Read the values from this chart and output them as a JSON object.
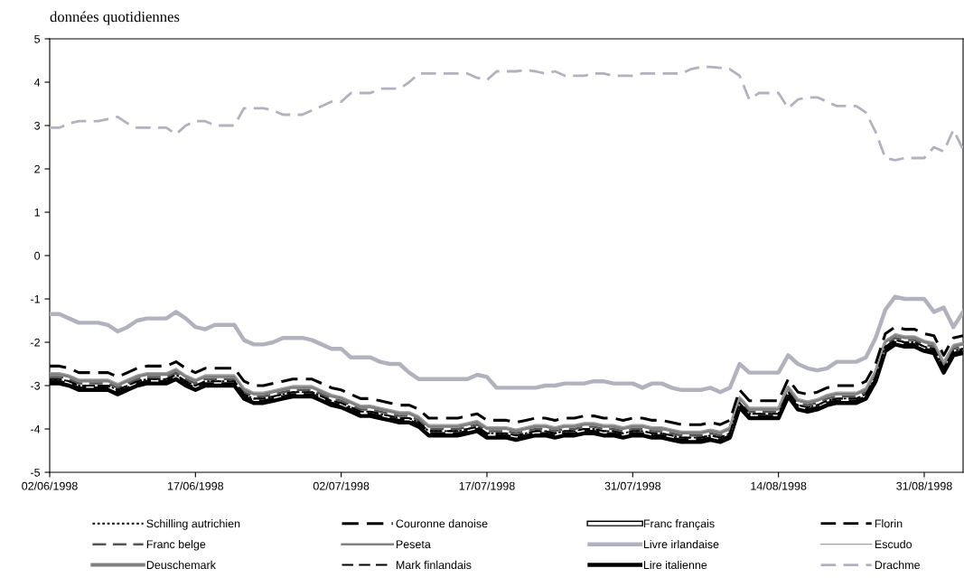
{
  "chart_data": {
    "type": "line",
    "title": "données quotidiennes",
    "categories": [
      "02/06/1998",
      null,
      null,
      null,
      null,
      null,
      null,
      null,
      null,
      null,
      null,
      null,
      null,
      null,
      null,
      "17/06/1998",
      null,
      null,
      null,
      null,
      null,
      null,
      null,
      null,
      null,
      null,
      null,
      null,
      null,
      null,
      "02/07/1998",
      null,
      null,
      null,
      null,
      null,
      null,
      null,
      null,
      null,
      null,
      null,
      null,
      null,
      null,
      "17/07/1998",
      null,
      null,
      null,
      null,
      null,
      null,
      null,
      null,
      null,
      null,
      null,
      null,
      null,
      null,
      "31/07/1998",
      null,
      null,
      null,
      null,
      null,
      null,
      null,
      null,
      null,
      null,
      null,
      null,
      null,
      null,
      "14/08/1998",
      null,
      null,
      null,
      null,
      null,
      null,
      null,
      null,
      null,
      null,
      null,
      null,
      null,
      null,
      "31/08/1998",
      null,
      null,
      null,
      null
    ],
    "ylim": [
      -5,
      5
    ],
    "yticks": [
      -5,
      -4,
      -3,
      -2,
      -1,
      0,
      1,
      2,
      3,
      4,
      5
    ],
    "grid": false,
    "legend": "bottom",
    "series": [
      {
        "name": "Schilling autrichien",
        "color": "#000000",
        "line_style": "dotted",
        "values": [
          -2.85,
          -2.85,
          -2.9,
          -3.0,
          -3.0,
          -3.0,
          -3.0,
          -3.1,
          -3.0,
          -2.9,
          -2.85,
          -2.85,
          -2.85,
          -2.75,
          -2.9,
          -3.0,
          -2.9,
          -2.9,
          -2.9,
          -2.9,
          -3.2,
          -3.3,
          -3.3,
          -3.25,
          -3.2,
          -3.15,
          -3.15,
          -3.15,
          -3.25,
          -3.35,
          -3.4,
          -3.5,
          -3.6,
          -3.6,
          -3.65,
          -3.7,
          -3.75,
          -3.75,
          -3.85,
          -4.05,
          -4.05,
          -4.05,
          -4.05,
          -4.0,
          -3.95,
          -4.1,
          -4.1,
          -4.1,
          -4.15,
          -4.1,
          -4.05,
          -4.05,
          -4.1,
          -4.05,
          -4.05,
          -4.0,
          -4.0,
          -4.05,
          -4.05,
          -4.1,
          -4.05,
          -4.05,
          -4.1,
          -4.1,
          -4.15,
          -4.2,
          -4.2,
          -4.2,
          -4.15,
          -4.2,
          -4.1,
          -3.4,
          -3.65,
          -3.65,
          -3.65,
          -3.65,
          -3.15,
          -3.45,
          -3.5,
          -3.45,
          -3.35,
          -3.3,
          -3.3,
          -3.3,
          -3.2,
          -2.8,
          -2.1,
          -1.95,
          -2.0,
          -2.0,
          -2.1,
          -2.15,
          -2.6,
          -2.2,
          -2.15
        ]
      },
      {
        "name": "Franc belge",
        "color": "#555555",
        "line_style": "dashed",
        "values": [
          -2.8,
          -2.8,
          -2.85,
          -2.95,
          -2.95,
          -2.95,
          -2.95,
          -3.05,
          -2.95,
          -2.85,
          -2.8,
          -2.8,
          -2.8,
          -2.7,
          -2.85,
          -2.95,
          -2.85,
          -2.85,
          -2.85,
          -2.85,
          -3.15,
          -3.25,
          -3.25,
          -3.2,
          -3.15,
          -3.1,
          -3.1,
          -3.1,
          -3.2,
          -3.3,
          -3.35,
          -3.45,
          -3.55,
          -3.55,
          -3.6,
          -3.65,
          -3.7,
          -3.7,
          -3.8,
          -4.0,
          -4.0,
          -4.0,
          -4.0,
          -3.95,
          -3.9,
          -4.05,
          -4.05,
          -4.05,
          -4.1,
          -4.05,
          -4.0,
          -4.0,
          -4.05,
          -4.0,
          -4.0,
          -3.95,
          -3.95,
          -4.0,
          -4.0,
          -4.05,
          -4.0,
          -4.0,
          -4.05,
          -4.05,
          -4.1,
          -4.15,
          -4.15,
          -4.15,
          -4.1,
          -4.15,
          -4.05,
          -3.35,
          -3.6,
          -3.6,
          -3.6,
          -3.6,
          -3.1,
          -3.4,
          -3.45,
          -3.4,
          -3.3,
          -3.25,
          -3.25,
          -3.25,
          -3.15,
          -2.75,
          -2.05,
          -1.9,
          -1.95,
          -1.95,
          -2.05,
          -2.1,
          -2.55,
          -2.15,
          -2.1
        ]
      },
      {
        "name": "Deuschemark",
        "color": "#808080",
        "line_style": "solid",
        "values": [
          -2.75,
          -2.75,
          -2.8,
          -2.9,
          -2.9,
          -2.9,
          -2.9,
          -3.0,
          -2.9,
          -2.8,
          -2.75,
          -2.75,
          -2.75,
          -2.65,
          -2.8,
          -2.9,
          -2.8,
          -2.8,
          -2.8,
          -2.8,
          -3.1,
          -3.2,
          -3.2,
          -3.15,
          -3.1,
          -3.05,
          -3.05,
          -3.05,
          -3.15,
          -3.25,
          -3.3,
          -3.4,
          -3.5,
          -3.5,
          -3.55,
          -3.6,
          -3.65,
          -3.65,
          -3.75,
          -3.95,
          -3.95,
          -3.95,
          -3.95,
          -3.9,
          -3.85,
          -4.0,
          -4.0,
          -4.0,
          -4.05,
          -4.0,
          -3.95,
          -3.95,
          -4.0,
          -3.95,
          -3.95,
          -3.9,
          -3.9,
          -3.95,
          -3.95,
          -4.0,
          -3.95,
          -3.95,
          -4.0,
          -4.0,
          -4.05,
          -4.1,
          -4.1,
          -4.1,
          -4.05,
          -4.1,
          -4.0,
          -3.3,
          -3.55,
          -3.55,
          -3.55,
          -3.55,
          -3.05,
          -3.35,
          -3.4,
          -3.35,
          -3.25,
          -3.2,
          -3.2,
          -3.2,
          -3.1,
          -2.7,
          -2.0,
          -1.85,
          -1.9,
          -1.9,
          -2.0,
          -2.05,
          -2.5,
          -2.1,
          -2.05
        ]
      },
      {
        "name": "Couronne danoise",
        "color": "#000000",
        "line_style": "dashed",
        "values": [
          -2.55,
          -2.55,
          -2.6,
          -2.7,
          -2.7,
          -2.7,
          -2.7,
          -2.8,
          -2.7,
          -2.6,
          -2.55,
          -2.55,
          -2.55,
          -2.45,
          -2.6,
          -2.7,
          -2.6,
          -2.6,
          -2.6,
          -2.6,
          -2.9,
          -3.0,
          -3.0,
          -2.95,
          -2.9,
          -2.85,
          -2.85,
          -2.85,
          -2.95,
          -3.05,
          -3.1,
          -3.2,
          -3.3,
          -3.3,
          -3.35,
          -3.4,
          -3.45,
          -3.45,
          -3.55,
          -3.75,
          -3.75,
          -3.75,
          -3.75,
          -3.7,
          -3.65,
          -3.8,
          -3.8,
          -3.8,
          -3.85,
          -3.8,
          -3.75,
          -3.75,
          -3.8,
          -3.75,
          -3.75,
          -3.7,
          -3.7,
          -3.75,
          -3.75,
          -3.8,
          -3.75,
          -3.75,
          -3.8,
          -3.8,
          -3.85,
          -3.9,
          -3.9,
          -3.9,
          -3.85,
          -3.9,
          -3.8,
          -3.1,
          -3.35,
          -3.35,
          -3.35,
          -3.35,
          -2.85,
          -3.15,
          -3.2,
          -3.15,
          -3.05,
          -3.0,
          -3.0,
          -3.0,
          -2.9,
          -2.5,
          -1.8,
          -1.65,
          -1.7,
          -1.7,
          -1.8,
          -1.85,
          -2.3,
          -1.9,
          -1.85
        ]
      },
      {
        "name": "Peseta",
        "color": "#808080",
        "line_style": "solid",
        "values": [
          -2.75,
          -2.75,
          -2.8,
          -2.9,
          -2.9,
          -2.9,
          -2.9,
          -3.0,
          -2.9,
          -2.8,
          -2.75,
          -2.75,
          -2.75,
          -2.65,
          -2.8,
          -2.9,
          -2.8,
          -2.8,
          -2.8,
          -2.8,
          -3.1,
          -3.2,
          -3.2,
          -3.15,
          -3.1,
          -3.05,
          -3.05,
          -3.05,
          -3.15,
          -3.25,
          -3.3,
          -3.4,
          -3.5,
          -3.5,
          -3.55,
          -3.6,
          -3.65,
          -3.65,
          -3.75,
          -3.95,
          -3.95,
          -3.95,
          -3.95,
          -3.9,
          -3.85,
          -4.0,
          -4.0,
          -4.0,
          -4.05,
          -4.0,
          -3.95,
          -3.95,
          -4.0,
          -3.95,
          -3.95,
          -3.9,
          -3.9,
          -3.95,
          -3.95,
          -4.0,
          -3.95,
          -3.95,
          -4.0,
          -4.0,
          -4.05,
          -4.1,
          -4.1,
          -4.1,
          -4.05,
          -4.1,
          -4.0,
          -3.3,
          -3.55,
          -3.55,
          -3.55,
          -3.55,
          -3.05,
          -3.35,
          -3.4,
          -3.35,
          -3.25,
          -3.2,
          -3.2,
          -3.2,
          -3.1,
          -2.7,
          -2.0,
          -1.85,
          -1.9,
          -1.9,
          -2.0,
          -2.05,
          -2.5,
          -2.1,
          -2.05
        ]
      },
      {
        "name": "Mark finlandais",
        "color": "#000000",
        "line_style": "dashed",
        "values": [
          -2.85,
          -2.85,
          -2.9,
          -3.0,
          -3.0,
          -3.0,
          -3.0,
          -3.1,
          -3.0,
          -2.9,
          -2.85,
          -2.85,
          -2.85,
          -2.75,
          -2.9,
          -3.0,
          -2.9,
          -2.9,
          -2.9,
          -2.9,
          -3.2,
          -3.3,
          -3.3,
          -3.25,
          -3.2,
          -3.15,
          -3.15,
          -3.15,
          -3.25,
          -3.35,
          -3.4,
          -3.5,
          -3.6,
          -3.6,
          -3.65,
          -3.7,
          -3.75,
          -3.75,
          -3.85,
          -4.05,
          -4.05,
          -4.05,
          -4.05,
          -4.0,
          -3.95,
          -4.1,
          -4.1,
          -4.1,
          -4.15,
          -4.1,
          -4.05,
          -4.05,
          -4.1,
          -4.05,
          -4.05,
          -4.0,
          -4.0,
          -4.05,
          -4.05,
          -4.1,
          -4.05,
          -4.05,
          -4.1,
          -4.1,
          -4.15,
          -4.2,
          -4.2,
          -4.2,
          -4.15,
          -4.2,
          -4.1,
          -3.4,
          -3.65,
          -3.65,
          -3.65,
          -3.65,
          -3.15,
          -3.45,
          -3.5,
          -3.45,
          -3.35,
          -3.3,
          -3.3,
          -3.3,
          -3.2,
          -2.8,
          -2.1,
          -1.95,
          -2.0,
          -2.0,
          -2.1,
          -2.15,
          -2.6,
          -2.2,
          -2.15
        ]
      },
      {
        "name": "Franc français",
        "color": "#ffffff",
        "line_style": "solid",
        "values": [
          -2.8,
          -2.8,
          -2.85,
          -2.95,
          -2.95,
          -2.95,
          -2.95,
          -3.05,
          -2.95,
          -2.85,
          -2.8,
          -2.8,
          -2.8,
          -2.7,
          -2.85,
          -2.95,
          -2.85,
          -2.85,
          -2.85,
          -2.85,
          -3.15,
          -3.25,
          -3.25,
          -3.2,
          -3.15,
          -3.1,
          -3.1,
          -3.1,
          -3.2,
          -3.3,
          -3.35,
          -3.45,
          -3.55,
          -3.55,
          -3.6,
          -3.65,
          -3.7,
          -3.7,
          -3.8,
          -4.0,
          -4.0,
          -4.0,
          -4.0,
          -3.95,
          -3.9,
          -4.05,
          -4.05,
          -4.05,
          -4.1,
          -4.05,
          -4.0,
          -4.0,
          -4.05,
          -4.0,
          -4.0,
          -3.95,
          -3.95,
          -4.0,
          -4.0,
          -4.05,
          -4.0,
          -4.0,
          -4.05,
          -4.05,
          -4.1,
          -4.15,
          -4.15,
          -4.15,
          -4.1,
          -4.15,
          -4.05,
          -3.35,
          -3.6,
          -3.6,
          -3.6,
          -3.6,
          -3.1,
          -3.4,
          -3.45,
          -3.4,
          -3.3,
          -3.25,
          -3.25,
          -3.25,
          -3.15,
          -2.75,
          -2.05,
          -1.9,
          -1.95,
          -1.95,
          -2.05,
          -2.1,
          -2.55,
          -2.15,
          -2.1
        ]
      },
      {
        "name": "Livre irlandaise",
        "color": "#b2b2be",
        "line_style": "solid",
        "values": [
          -1.35,
          -1.35,
          -1.45,
          -1.55,
          -1.55,
          -1.55,
          -1.6,
          -1.75,
          -1.65,
          -1.5,
          -1.45,
          -1.45,
          -1.45,
          -1.3,
          -1.45,
          -1.65,
          -1.7,
          -1.6,
          -1.6,
          -1.6,
          -1.95,
          -2.05,
          -2.05,
          -2.0,
          -1.9,
          -1.9,
          -1.9,
          -1.95,
          -2.05,
          -2.15,
          -2.15,
          -2.35,
          -2.35,
          -2.35,
          -2.45,
          -2.5,
          -2.5,
          -2.7,
          -2.85,
          -2.85,
          -2.85,
          -2.85,
          -2.85,
          -2.85,
          -2.75,
          -2.8,
          -3.05,
          -3.05,
          -3.05,
          -3.05,
          -3.05,
          -3.0,
          -3.0,
          -2.95,
          -2.95,
          -2.95,
          -2.9,
          -2.9,
          -2.95,
          -2.95,
          -2.95,
          -3.05,
          -2.95,
          -2.95,
          -3.05,
          -3.1,
          -3.1,
          -3.1,
          -3.05,
          -3.15,
          -3.05,
          -2.5,
          -2.7,
          -2.7,
          -2.7,
          -2.7,
          -2.3,
          -2.5,
          -2.6,
          -2.65,
          -2.6,
          -2.45,
          -2.45,
          -2.45,
          -2.35,
          -1.9,
          -1.25,
          -0.95,
          -1.0,
          -1.0,
          -1.0,
          -1.3,
          -1.2,
          -1.65,
          -1.3
        ]
      },
      {
        "name": "Lire italienne",
        "color": "#000000",
        "line_style": "solid",
        "values": [
          -2.95,
          -2.95,
          -3.0,
          -3.1,
          -3.1,
          -3.1,
          -3.1,
          -3.2,
          -3.1,
          -3.0,
          -2.95,
          -2.95,
          -2.95,
          -2.85,
          -3.0,
          -3.1,
          -3.0,
          -3.0,
          -3.0,
          -3.0,
          -3.3,
          -3.4,
          -3.4,
          -3.35,
          -3.3,
          -3.25,
          -3.25,
          -3.25,
          -3.35,
          -3.45,
          -3.5,
          -3.6,
          -3.7,
          -3.7,
          -3.75,
          -3.8,
          -3.85,
          -3.85,
          -3.95,
          -4.15,
          -4.15,
          -4.15,
          -4.15,
          -4.1,
          -4.05,
          -4.2,
          -4.2,
          -4.2,
          -4.25,
          -4.2,
          -4.15,
          -4.15,
          -4.2,
          -4.15,
          -4.15,
          -4.1,
          -4.1,
          -4.15,
          -4.15,
          -4.2,
          -4.15,
          -4.15,
          -4.2,
          -4.2,
          -4.25,
          -4.3,
          -4.3,
          -4.3,
          -4.25,
          -4.3,
          -4.2,
          -3.5,
          -3.75,
          -3.75,
          -3.75,
          -3.75,
          -3.25,
          -3.55,
          -3.6,
          -3.55,
          -3.45,
          -3.4,
          -3.4,
          -3.4,
          -3.3,
          -2.9,
          -2.2,
          -2.05,
          -2.1,
          -2.1,
          -2.2,
          -2.25,
          -2.7,
          -2.3,
          -2.25
        ]
      },
      {
        "name": "Florin",
        "color": "#000000",
        "line_style": "dashed",
        "values": [
          -2.9,
          -2.9,
          -2.95,
          -3.05,
          -3.05,
          -3.05,
          -3.05,
          -3.15,
          -3.05,
          -2.95,
          -2.9,
          -2.9,
          -2.9,
          -2.8,
          -2.95,
          -3.05,
          -2.95,
          -2.95,
          -2.95,
          -2.95,
          -3.25,
          -3.35,
          -3.35,
          -3.3,
          -3.25,
          -3.2,
          -3.2,
          -3.2,
          -3.3,
          -3.4,
          -3.45,
          -3.55,
          -3.65,
          -3.65,
          -3.7,
          -3.75,
          -3.8,
          -3.8,
          -3.9,
          -4.1,
          -4.1,
          -4.1,
          -4.1,
          -4.05,
          -4.0,
          -4.15,
          -4.15,
          -4.15,
          -4.2,
          -4.15,
          -4.1,
          -4.1,
          -4.15,
          -4.1,
          -4.1,
          -4.05,
          -4.05,
          -4.1,
          -4.1,
          -4.15,
          -4.1,
          -4.1,
          -4.15,
          -4.15,
          -4.2,
          -4.25,
          -4.25,
          -4.25,
          -4.2,
          -4.25,
          -4.15,
          -3.45,
          -3.7,
          -3.7,
          -3.7,
          -3.7,
          -3.2,
          -3.5,
          -3.55,
          -3.5,
          -3.4,
          -3.35,
          -3.35,
          -3.35,
          -3.25,
          -2.85,
          -2.15,
          -2.0,
          -2.05,
          -2.05,
          -2.15,
          -2.2,
          -2.65,
          -2.25,
          -2.2
        ]
      },
      {
        "name": "Escudo",
        "color": "#a0a0a0",
        "line_style": "solid",
        "values": [
          -2.7,
          -2.7,
          -2.75,
          -2.85,
          -2.85,
          -2.85,
          -2.85,
          -2.95,
          -2.85,
          -2.75,
          -2.7,
          -2.7,
          -2.7,
          -2.6,
          -2.75,
          -2.85,
          -2.75,
          -2.75,
          -2.75,
          -2.75,
          -3.05,
          -3.15,
          -3.15,
          -3.1,
          -3.05,
          -3.0,
          -3.0,
          -3.0,
          -3.1,
          -3.2,
          -3.25,
          -3.35,
          -3.45,
          -3.45,
          -3.5,
          -3.55,
          -3.6,
          -3.6,
          -3.7,
          -3.9,
          -3.9,
          -3.9,
          -3.9,
          -3.85,
          -3.8,
          -3.95,
          -3.95,
          -3.95,
          -4.0,
          -3.95,
          -3.9,
          -3.9,
          -3.95,
          -3.9,
          -3.9,
          -3.85,
          -3.85,
          -3.9,
          -3.9,
          -3.95,
          -3.9,
          -3.9,
          -3.95,
          -3.95,
          -4.0,
          -4.05,
          -4.05,
          -4.05,
          -4.0,
          -4.05,
          -3.95,
          -3.25,
          -3.5,
          -3.5,
          -3.5,
          -3.5,
          -3.0,
          -3.3,
          -3.35,
          -3.3,
          -3.2,
          -3.15,
          -3.15,
          -3.15,
          -3.05,
          -2.65,
          -1.95,
          -1.8,
          -1.85,
          -1.85,
          -1.95,
          -2.0,
          -2.45,
          -2.05,
          -2.0
        ]
      },
      {
        "name": "Drachme",
        "color": "#b2b2be",
        "line_style": "dashed",
        "values": [
          2.95,
          2.95,
          3.05,
          3.1,
          3.1,
          3.1,
          3.15,
          3.2,
          3.05,
          2.95,
          2.95,
          2.95,
          2.95,
          2.8,
          3.0,
          3.1,
          3.1,
          3.0,
          3.0,
          3.0,
          3.4,
          3.4,
          3.4,
          3.35,
          3.25,
          3.25,
          3.25,
          3.35,
          3.45,
          3.55,
          3.55,
          3.75,
          3.75,
          3.75,
          3.85,
          3.85,
          3.85,
          4.0,
          4.2,
          4.2,
          4.2,
          4.2,
          4.2,
          4.2,
          4.1,
          4.05,
          4.25,
          4.25,
          4.25,
          4.28,
          4.25,
          4.2,
          4.25,
          4.15,
          4.15,
          4.15,
          4.2,
          4.2,
          4.15,
          4.15,
          4.15,
          4.2,
          4.2,
          4.2,
          4.2,
          4.2,
          4.3,
          4.35,
          4.35,
          4.33,
          4.3,
          4.15,
          3.6,
          3.75,
          3.75,
          3.75,
          3.4,
          3.6,
          3.65,
          3.65,
          3.55,
          3.45,
          3.45,
          3.45,
          3.3,
          2.85,
          2.25,
          2.2,
          2.25,
          2.25,
          2.25,
          2.5,
          2.4,
          2.9,
          2.45
        ]
      }
    ]
  }
}
